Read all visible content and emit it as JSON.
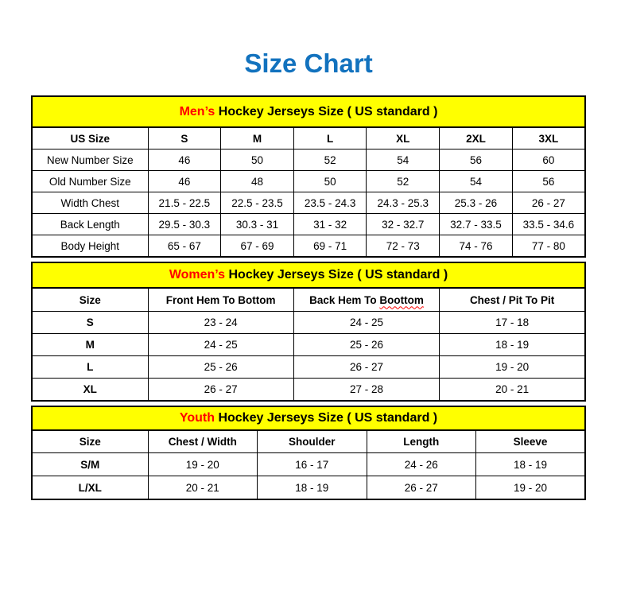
{
  "page_title": "Size Chart",
  "colors": {
    "title_blue": "#1272BE",
    "highlight_red": "#FF0000",
    "band_yellow": "#FFFF00",
    "border_black": "#000000"
  },
  "tables": [
    {
      "id": "mens",
      "banner": {
        "highlight": "Men’s",
        "rest": " Hockey Jerseys Size ( US standard )"
      },
      "columns": [
        "US Size",
        "S",
        "M",
        "L",
        "XL",
        "2XL",
        "3XL"
      ],
      "rows": [
        {
          "label": "New Number Size",
          "values": [
            "46",
            "50",
            "52",
            "54",
            "56",
            "60"
          ]
        },
        {
          "label": "Old Number Size",
          "values": [
            "46",
            "48",
            "50",
            "52",
            "54",
            "56"
          ]
        },
        {
          "label": "Width Chest",
          "values": [
            "21.5 - 22.5",
            "22.5 - 23.5",
            "23.5 - 24.3",
            "24.3 - 25.3",
            "25.3 - 26",
            "26 - 27"
          ]
        },
        {
          "label": "Back Length",
          "values": [
            "29.5 - 30.3",
            "30.3 - 31",
            "31 - 32",
            "32 - 32.7",
            "32.7 - 33.5",
            "33.5 - 34.6"
          ]
        },
        {
          "label": "Body Height",
          "values": [
            "65 - 67",
            "67 - 69",
            "69 - 71",
            "72 - 73",
            "74 - 76",
            "77 - 80"
          ]
        }
      ]
    },
    {
      "id": "womens",
      "banner": {
        "highlight": "Women’s",
        "rest": " Hockey Jerseys Size ( US standard )"
      },
      "columns": [
        "Size",
        "Front Hem To Bottom",
        {
          "pre": "Back Hem To ",
          "misspelled": "Boottom"
        },
        "Chest / Pit To Pit"
      ],
      "rows": [
        {
          "label": "S",
          "values": [
            "23 - 24",
            "24 - 25",
            "17 - 18"
          ]
        },
        {
          "label": "M",
          "values": [
            "24 - 25",
            "25 - 26",
            "18 - 19"
          ]
        },
        {
          "label": "L",
          "values": [
            "25 - 26",
            "26 - 27",
            "19 - 20"
          ]
        },
        {
          "label": "XL",
          "values": [
            "26 - 27",
            "27 - 28",
            "20 - 21"
          ]
        }
      ]
    },
    {
      "id": "youth",
      "banner": {
        "highlight": "Youth",
        "rest": " Hockey Jerseys Size ( US standard )"
      },
      "columns": [
        "Size",
        "Chest / Width",
        "Shoulder",
        "Length",
        "Sleeve"
      ],
      "rows": [
        {
          "label": "S/M",
          "values": [
            "19 - 20",
            "16 - 17",
            "24 - 26",
            "18 - 19"
          ]
        },
        {
          "label": "L/XL",
          "values": [
            "20 - 21",
            "18 - 19",
            "26 - 27",
            "19 - 20"
          ]
        }
      ]
    }
  ]
}
